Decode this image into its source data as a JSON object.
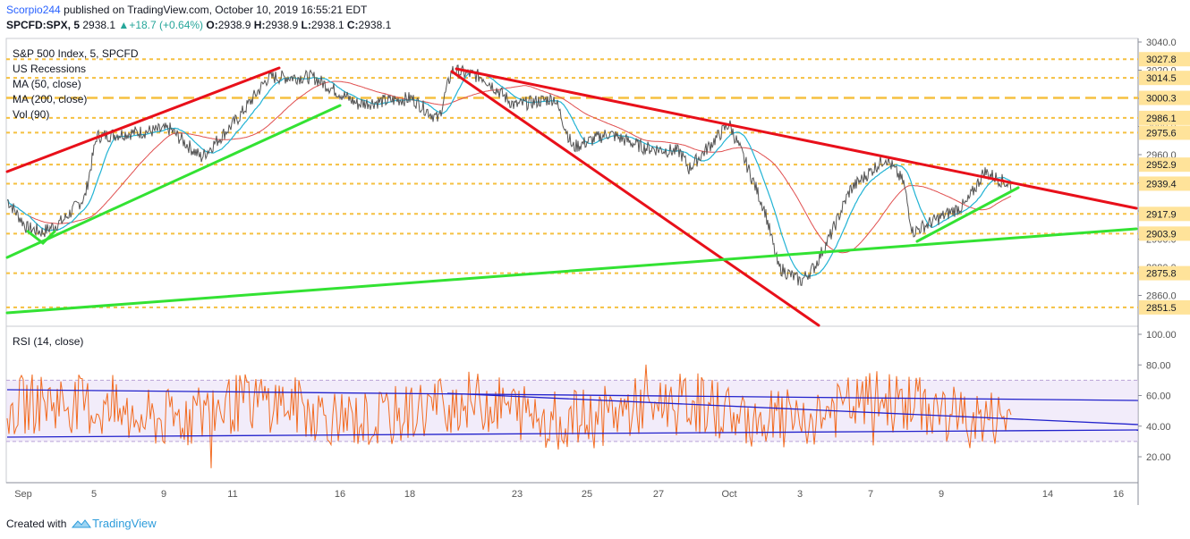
{
  "header": {
    "author": "Scorpio244",
    "published_text": "published on TradingView.com, October 10, 2019 16:55:21 EDT",
    "symbol": "SPCFD:SPX, 5",
    "last": "2938.1",
    "change": "+18.7 (+0.64%)",
    "o_label": "O:",
    "o": "2938.9",
    "h_label": "H:",
    "h": "2938.9",
    "l_label": "L:",
    "l": "2938.1",
    "c_label": "C:",
    "c": "2938.1"
  },
  "legend": {
    "title": "S&P 500 Index, 5, SPCFD",
    "items": [
      "US Recessions",
      "MA (50, close)",
      "MA (200, close)",
      "Vol (90)"
    ]
  },
  "rsi_legend": "RSI (14, close)",
  "footer": {
    "created_with": "Created with",
    "brand": "TradingView"
  },
  "colors": {
    "price": "#555555",
    "ma50": "#22b3d4",
    "ma200": "#e05050",
    "red_trend": "#e8101a",
    "green_trend": "#33e233",
    "gold": "#f5c040",
    "rsi": "#f26b21",
    "rsi_band": "#e8dcf5",
    "blue_trend": "#2222cc"
  },
  "chart_data": [
    {
      "type": "line",
      "title": "S&P 500 Index, 5, SPCFD",
      "ylim": [
        2840,
        3040
      ],
      "y_ticks": [
        2860,
        2880,
        2900,
        2920,
        2940,
        2960,
        2980,
        3000,
        3020,
        3040
      ],
      "x_tick_labels": [
        "Sep",
        "5",
        "9",
        "11",
        "16",
        "18",
        "23",
        "25",
        "27",
        "Oct",
        "3",
        "7",
        "9",
        "14",
        "16"
      ],
      "horizontal_levels": [
        3027.8,
        3014.5,
        3000.3,
        2986.1,
        2975.6,
        2952.9,
        2939.4,
        2917.9,
        2903.9,
        2875.8,
        2851.5
      ],
      "level_labels": [
        "3027.8",
        "3014.5",
        "3000.3",
        "2986.1",
        "2975.6",
        "2952.9",
        "2939.4",
        "2917.9",
        "2903.9",
        "2875.8",
        "2851.5"
      ],
      "close_price": 2938.1,
      "series": [
        {
          "name": "MA (50, close)"
        },
        {
          "name": "MA (200, close)"
        }
      ]
    },
    {
      "type": "line",
      "title": "RSI (14, close)",
      "ylim": [
        0,
        100
      ],
      "y_ticks": [
        20,
        40,
        60,
        80,
        100
      ],
      "y_tick_labels": [
        "20.00",
        "40.00",
        "60.00",
        "80.00",
        "100.00"
      ],
      "band": [
        30,
        70
      ]
    }
  ]
}
